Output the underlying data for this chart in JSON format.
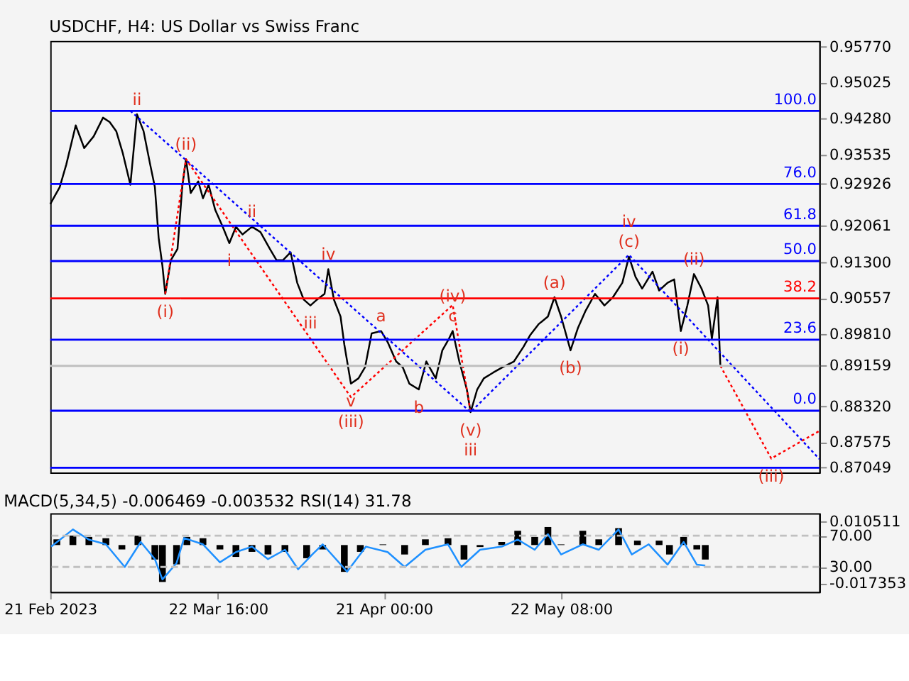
{
  "chart_data": [
    {
      "type": "line",
      "title": "USDCHF, H4:  US Dollar vs Swiss Franc",
      "tick_labels": "y",
      "xlim": [
        "2023-02-21T00:00",
        "2023-07-07T00:00"
      ],
      "xticks": [
        {
          "value": "2023-02-21T00:00",
          "label": null
        },
        {
          "value": "2023-03-22T16:00",
          "label": null
        },
        {
          "value": "2023-04-21T00:00",
          "label": null
        },
        {
          "value": "2023-05-22T08:00",
          "label": null
        }
      ],
      "ylim": [
        0.8695,
        0.9589
      ],
      "yticks": [
        {
          "value": 0.9577,
          "label": "0.95770"
        },
        {
          "value": 0.95025,
          "label": "0.95025"
        },
        {
          "value": 0.9428,
          "label": "0.94280"
        },
        {
          "value": 0.93535,
          "label": "0.93535"
        },
        {
          "value": 0.92926,
          "label": "0.92926"
        },
        {
          "value": 0.92061,
          "label": "0.92061"
        },
        {
          "value": 0.913,
          "label": "0.91300"
        },
        {
          "value": 0.90557,
          "label": "0.90557"
        },
        {
          "value": 0.8981,
          "label": "0.89810"
        },
        {
          "value": 0.89159,
          "label": "0.89159"
        },
        {
          "value": 0.8832,
          "label": "0.88320"
        },
        {
          "value": 0.87575,
          "label": "0.87575"
        },
        {
          "value": 0.87049,
          "label": "0.87049"
        }
      ],
      "series": [
        {
          "color": "#000000",
          "line_style": "solid",
          "x": [
            "2023-02-21T00:00",
            "2023-02-22T16:00",
            "2023-02-23T20:00",
            "2023-02-25T12:00",
            "2023-02-27T00:00",
            "2023-02-28T16:00",
            "2023-03-02T08:00",
            "2023-03-03T12:00",
            "2023-03-04T16:00",
            "2023-03-05T20:00",
            "2023-03-07T04:00",
            "2023-03-08T08:00",
            "2023-03-09T12:00",
            "2023-03-10T16:00",
            "2023-03-11T12:00",
            "2023-03-12T04:00",
            "2023-03-12T20:00",
            "2023-03-13T08:00",
            "2023-03-14T08:00",
            "2023-03-15T12:00",
            "2023-03-16T08:00",
            "2023-03-17T00:00",
            "2023-03-17T20:00",
            "2023-03-19T04:00",
            "2023-03-20T00:00",
            "2023-03-21T00:00",
            "2023-03-22T04:00",
            "2023-03-23T12:00",
            "2023-03-24T16:00",
            "2023-03-25T20:00",
            "2023-03-27T00:00",
            "2023-03-28T16:00",
            "2023-03-30T04:00",
            "2023-03-31T20:00",
            "2023-04-02T00:00",
            "2023-04-03T04:00",
            "2023-04-04T12:00",
            "2023-04-05T16:00",
            "2023-04-06T20:00",
            "2023-04-08T00:00",
            "2023-04-09T04:00",
            "2023-04-10T12:00",
            "2023-04-11T04:00",
            "2023-04-12T04:00",
            "2023-04-13T08:00",
            "2023-04-14T00:00",
            "2023-04-15T04:00",
            "2023-04-16T12:00",
            "2023-04-17T16:00",
            "2023-04-18T20:00",
            "2023-04-20T12:00",
            "2023-04-21T16:00",
            "2023-04-23T04:00",
            "2023-04-24T08:00",
            "2023-04-25T12:00",
            "2023-04-27T04:00",
            "2023-04-28T12:00",
            "2023-04-30T04:00",
            "2023-05-01T08:00",
            "2023-05-02T12:00",
            "2023-05-03T04:00",
            "2023-05-04T08:00",
            "2023-05-05T16:00",
            "2023-05-06T08:00",
            "2023-05-07T12:00",
            "2023-05-08T16:00",
            "2023-05-10T08:00",
            "2023-05-12T00:00",
            "2023-05-14T00:00",
            "2023-05-15T16:00",
            "2023-05-16T20:00",
            "2023-05-18T08:00",
            "2023-05-20T00:00",
            "2023-05-21T04:00",
            "2023-05-22T08:00",
            "2023-05-24T00:00",
            "2023-05-25T08:00",
            "2023-05-26T16:00",
            "2023-05-28T08:00",
            "2023-05-30T00:00",
            "2023-05-31T12:00",
            "2023-06-02T04:00",
            "2023-06-03T08:00",
            "2023-06-04T12:00",
            "2023-06-05T16:00",
            "2023-06-07T12:00",
            "2023-06-08T16:00",
            "2023-06-10T04:00",
            "2023-06-11T08:00",
            "2023-06-12T12:00",
            "2023-06-13T16:00",
            "2023-06-14T20:00",
            "2023-06-16T04:00",
            "2023-06-17T08:00",
            "2023-06-18T00:00",
            "2023-06-19T00:00",
            "2023-06-19T12:00"
          ],
          "values": [
            0.9251,
            0.9286,
            0.9333,
            0.9414,
            0.9367,
            0.9391,
            0.943,
            0.9421,
            0.9402,
            0.9356,
            0.9291,
            0.9437,
            0.9402,
            0.9333,
            0.9286,
            0.9181,
            0.9123,
            0.9065,
            0.9135,
            0.9158,
            0.9286,
            0.9344,
            0.9274,
            0.9298,
            0.9263,
            0.9291,
            0.9239,
            0.9204,
            0.917,
            0.9204,
            0.9188,
            0.9204,
            0.9193,
            0.9158,
            0.9135,
            0.9135,
            0.9151,
            0.9088,
            0.9053,
            0.9041,
            0.9053,
            0.9065,
            0.9116,
            0.9053,
            0.9018,
            0.896,
            0.8879,
            0.889,
            0.8913,
            0.8983,
            0.8988,
            0.8965,
            0.8925,
            0.8913,
            0.8879,
            0.8867,
            0.8925,
            0.889,
            0.8948,
            0.8972,
            0.8988,
            0.8925,
            0.8867,
            0.882,
            0.8867,
            0.889,
            0.8902,
            0.8913,
            0.8925,
            0.8955,
            0.8979,
            0.9002,
            0.9018,
            0.9058,
            0.9018,
            0.8948,
            0.8995,
            0.903,
            0.9065,
            0.9041,
            0.9058,
            0.9088,
            0.9142,
            0.91,
            0.9076,
            0.9111,
            0.9072,
            0.9088,
            0.9095,
            0.8988,
            0.9041,
            0.9106,
            0.9076,
            0.9041,
            0.8972,
            0.9058,
            0.8916
          ]
        },
        {
          "color": "#0000ff",
          "line_style": "dotted",
          "x": [
            "2023-03-07T04:00",
            "2023-05-06T08:00",
            "2023-06-03T08:00",
            "2023-07-07T00:00"
          ],
          "values": [
            0.9444,
            0.882,
            0.9146,
            0.8723
          ]
        },
        {
          "color": "#ff0000",
          "line_style": "dotted",
          "x": [
            "2023-03-13T08:00",
            "2023-03-17T00:00",
            "2023-04-15T04:00",
            "2023-05-03T04:00",
            "2023-05-06T08:00"
          ],
          "values": [
            0.9065,
            0.9344,
            0.8851,
            0.9042,
            0.882
          ]
        },
        {
          "color": "#ff0000",
          "line_style": "dotted",
          "x": [
            "2023-06-19T12:00",
            "2023-06-28T12:00",
            "2023-07-07T00:00"
          ],
          "values": [
            0.8916,
            0.8724,
            0.8781
          ]
        }
      ],
      "ref_lines": [
        {
          "axis": "y",
          "value": 0.9444,
          "label": null,
          "color": "#0000ff"
        },
        {
          "axis": "y",
          "value": 0.92926,
          "label": null,
          "color": "#0000ff"
        },
        {
          "axis": "y",
          "value": 0.92061,
          "label": null,
          "color": "#0000ff"
        },
        {
          "axis": "y",
          "value": 0.9133,
          "label": null,
          "color": "#0000ff"
        },
        {
          "axis": "y",
          "value": 0.90557,
          "label": null,
          "color": "#ff0000"
        },
        {
          "axis": "y",
          "value": 0.897,
          "label": null,
          "color": "#0000ff"
        },
        {
          "axis": "y",
          "value": 0.8823,
          "label": null,
          "color": "#0000ff"
        },
        {
          "axis": "y",
          "value": 0.89159,
          "label": null,
          "color": "#c0c0c0"
        },
        {
          "axis": "y",
          "value": 0.87049,
          "label": null,
          "color": "#0000ff"
        }
      ],
      "annotations": [
        {
          "text": "100.0",
          "x": "2023-07-07T00:00",
          "y": 0.9444
        },
        {
          "text": "76.0",
          "x": "2023-07-07T00:00",
          "y": 0.92926
        },
        {
          "text": "61.8",
          "x": "2023-07-07T00:00",
          "y": 0.92061
        },
        {
          "text": "50.0",
          "x": "2023-07-07T00:00",
          "y": 0.9133
        },
        {
          "text": "38.2",
          "x": "2023-07-07T00:00",
          "y": 0.90557
        },
        {
          "text": "23.6",
          "x": "2023-07-07T00:00",
          "y": 0.897
        },
        {
          "text": "0.0",
          "x": "2023-07-07T00:00",
          "y": 0.8823
        },
        {
          "text": "ii",
          "x": "2023-03-08T08:00",
          "y": 0.9437
        },
        {
          "text": "(ii)",
          "x": "2023-03-17T00:00",
          "y": 0.9344
        },
        {
          "text": "(i)",
          "x": "2023-03-13T08:00",
          "y": 0.9065
        },
        {
          "text": "ii",
          "x": "2023-03-28T16:00",
          "y": 0.9204
        },
        {
          "text": "i",
          "x": "2023-03-24T16:00",
          "y": 0.917
        },
        {
          "text": "iv",
          "x": "2023-04-11T04:00",
          "y": 0.9116
        },
        {
          "text": "iii",
          "x": "2023-04-08T00:00",
          "y": 0.9041
        },
        {
          "text": "a",
          "x": "2023-04-20T12:00",
          "y": 0.8988
        },
        {
          "text": "c",
          "x": "2023-05-03T04:00",
          "y": 0.8988
        },
        {
          "text": "(iv)",
          "x": "2023-05-03T04:00",
          "y": 0.8988
        },
        {
          "text": "v",
          "x": "2023-04-15T04:00",
          "y": 0.8879
        },
        {
          "text": "(iii)",
          "x": "2023-04-15T04:00",
          "y": 0.8879
        },
        {
          "text": "b",
          "x": "2023-04-27T04:00",
          "y": 0.8867
        },
        {
          "text": "(v)",
          "x": "2023-05-06T08:00",
          "y": 0.882
        },
        {
          "text": "iii",
          "x": "2023-05-06T08:00",
          "y": 0.882
        },
        {
          "text": "(a)",
          "x": "2023-05-21T04:00",
          "y": 0.9058
        },
        {
          "text": "(b)",
          "x": "2023-05-24T00:00",
          "y": 0.8948
        },
        {
          "text": "(c)",
          "x": "2023-06-03T08:00",
          "y": 0.9142
        },
        {
          "text": "iv",
          "x": "2023-06-03T08:00",
          "y": 0.9142
        },
        {
          "text": "(ii)",
          "x": "2023-06-14T20:00",
          "y": 0.9106
        },
        {
          "text": "(i)",
          "x": "2023-06-12T12:00",
          "y": 0.8988
        },
        {
          "text": "(iii)",
          "x": "2023-06-28T12:00",
          "y": 0.8724
        }
      ]
    },
    {
      "type": "bar",
      "title": "MACD(5,34,5) -0.006469 -0.003532 RSI(14) 31.78",
      "xlim": [
        "2023-02-21T00:00",
        "2023-07-07T00:00"
      ],
      "xticks": [
        {
          "value": "2023-02-21T00:00",
          "label": "21 Feb 2023"
        },
        {
          "value": "2023-03-22T16:00",
          "label": "22 Mar 16:00"
        },
        {
          "value": "2023-04-21T00:00",
          "label": "21 Apr 00:00"
        },
        {
          "value": "2023-05-22T08:00",
          "label": "22 May 08:00"
        }
      ],
      "ylim": [
        -0.02134,
        0.01449
      ],
      "yticks": [
        0.010511,
        -0.017353
      ],
      "y2lim": [
        -2,
        98.8
      ],
      "y2ticks": [
        {
          "value": 70,
          "label": "70.00"
        },
        {
          "value": 30,
          "label": "30.00"
        }
      ],
      "series": [
        {
          "color": "#000000",
          "x": [
            "2023-02-22T04:00",
            "2023-02-25T00:00",
            "2023-02-27T20:00",
            "2023-03-02T20:00",
            "2023-03-05T16:00",
            "2023-03-08T12:00",
            "2023-03-11T12:00",
            "2023-03-12T20:00",
            "2023-03-15T08:00",
            "2023-03-17T04:00",
            "2023-03-20T00:00",
            "2023-03-23T00:00",
            "2023-03-25T20:00",
            "2023-03-28T16:00",
            "2023-03-31T12:00",
            "2023-04-03T12:00",
            "2023-04-07T08:00",
            "2023-04-10T04:00",
            "2023-04-14T00:00",
            "2023-04-16T20:00",
            "2023-04-20T20:00",
            "2023-04-24T16:00",
            "2023-04-28T08:00",
            "2023-05-02T08:00",
            "2023-05-05T04:00",
            "2023-05-08T00:00",
            "2023-05-11T20:00",
            "2023-05-14T16:00",
            "2023-05-17T16:00",
            "2023-05-20T00:00",
            "2023-05-22T08:00",
            "2023-05-26T04:00",
            "2023-05-29T00:00",
            "2023-06-01T12:00",
            "2023-06-04T20:00",
            "2023-06-08T16:00",
            "2023-06-10T12:00",
            "2023-06-13T00:00",
            "2023-06-15T08:00",
            "2023-06-16T20:00"
          ],
          "values": [
            0.0026,
            0.0043,
            0.0037,
            0.0031,
            -0.002,
            0.0043,
            -0.0066,
            -0.0168,
            -0.0088,
            0.0037,
            0.0031,
            -0.002,
            -0.0054,
            -0.0031,
            -0.0043,
            -0.0031,
            -0.006,
            -0.002,
            -0.0122,
            -0.0031,
            0.0003,
            -0.0043,
            0.0026,
            0.0031,
            -0.0066,
            -0.0009,
            0.0014,
            0.0065,
            0.0037,
            0.0082,
            0.0003,
            0.0065,
            0.0026,
            0.0077,
            0.002,
            0.002,
            -0.0043,
            0.0037,
            -0.002,
            -0.0066
          ]
        },
        {
          "type": "line",
          "axis": "y2",
          "color": "#1e90ff",
          "line_style": "solid",
          "x": [
            "2023-02-21T04:00",
            "2023-02-25T00:00",
            "2023-02-27T20:00",
            "2023-03-02T20:00",
            "2023-03-06T04:00",
            "2023-03-09T00:00",
            "2023-03-11T12:00",
            "2023-03-12T20:00",
            "2023-03-15T08:00",
            "2023-03-16T16:00",
            "2023-03-20T00:00",
            "2023-03-23T00:00",
            "2023-03-25T20:00",
            "2023-03-28T16:00",
            "2023-03-31T12:00",
            "2023-04-03T12:00",
            "2023-04-05T20:00",
            "2023-04-08T08:00",
            "2023-04-10T04:00",
            "2023-04-14T12:00",
            "2023-04-17T20:00",
            "2023-04-21T16:00",
            "2023-04-24T16:00",
            "2023-04-28T08:00",
            "2023-05-02T08:00",
            "2023-05-04T16:00",
            "2023-05-08T00:00",
            "2023-05-11T20:00",
            "2023-05-14T16:00",
            "2023-05-17T16:00",
            "2023-05-20T00:00",
            "2023-05-22T08:00",
            "2023-05-26T04:00",
            "2023-05-29T00:00",
            "2023-06-01T12:00",
            "2023-06-03T20:00",
            "2023-06-06T20:00",
            "2023-06-10T04:00",
            "2023-06-13T00:00",
            "2023-06-15T08:00",
            "2023-06-16T20:00"
          ],
          "values": [
            56,
            78,
            65,
            59,
            30,
            62,
            40,
            14,
            35,
            67,
            59,
            36,
            49,
            56,
            40,
            52,
            27,
            46,
            59,
            24,
            56,
            49,
            30,
            52,
            59,
            30,
            52,
            56,
            65,
            52,
            72,
            46,
            59,
            52,
            78,
            46,
            59,
            33,
            62,
            33,
            31.78
          ]
        }
      ],
      "ref_lines": [
        {
          "axis": "y2",
          "value": 70,
          "label": null,
          "color": "#c0c0c0",
          "line_style": "dashed"
        },
        {
          "axis": "y2",
          "value": 30,
          "label": null,
          "color": "#c0c0c0",
          "line_style": "dashed"
        }
      ]
    }
  ]
}
